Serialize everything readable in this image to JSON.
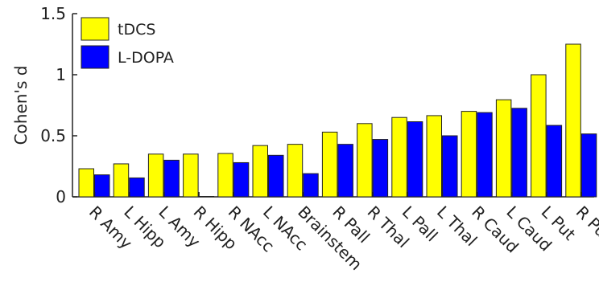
{
  "chart_data": {
    "type": "bar",
    "ylabel": "Cohen's d",
    "ylim": [
      0,
      1.5
    ],
    "yticks": [
      0,
      0.5,
      1,
      1.5
    ],
    "ytick_labels": [
      "0",
      "0.5",
      "1",
      "1.5"
    ],
    "categories": [
      "R Amy",
      "L Hipp",
      "L Amy",
      "R Hipp",
      "R NAcc",
      "L NAcc",
      "Brainstem",
      "R Pall",
      "R Thal",
      "L Pall",
      "L Thal",
      "R Caud",
      "L Caud",
      "L Put",
      "R Put"
    ],
    "series": [
      {
        "name": "tDCS",
        "color": "#ffff00",
        "values": [
          0.23,
          0.27,
          0.35,
          0.35,
          0.355,
          0.42,
          0.43,
          0.53,
          0.6,
          0.65,
          0.665,
          0.7,
          0.795,
          1.0,
          1.25
        ]
      },
      {
        "name": "L-DOPA",
        "color": "#0000ff",
        "values": [
          0.18,
          0.155,
          0.3,
          0.0,
          0.28,
          0.34,
          0.19,
          0.43,
          0.47,
          0.615,
          0.5,
          0.69,
          0.725,
          0.585,
          0.515
        ]
      }
    ],
    "legend_position": "top-left",
    "grid": false
  }
}
